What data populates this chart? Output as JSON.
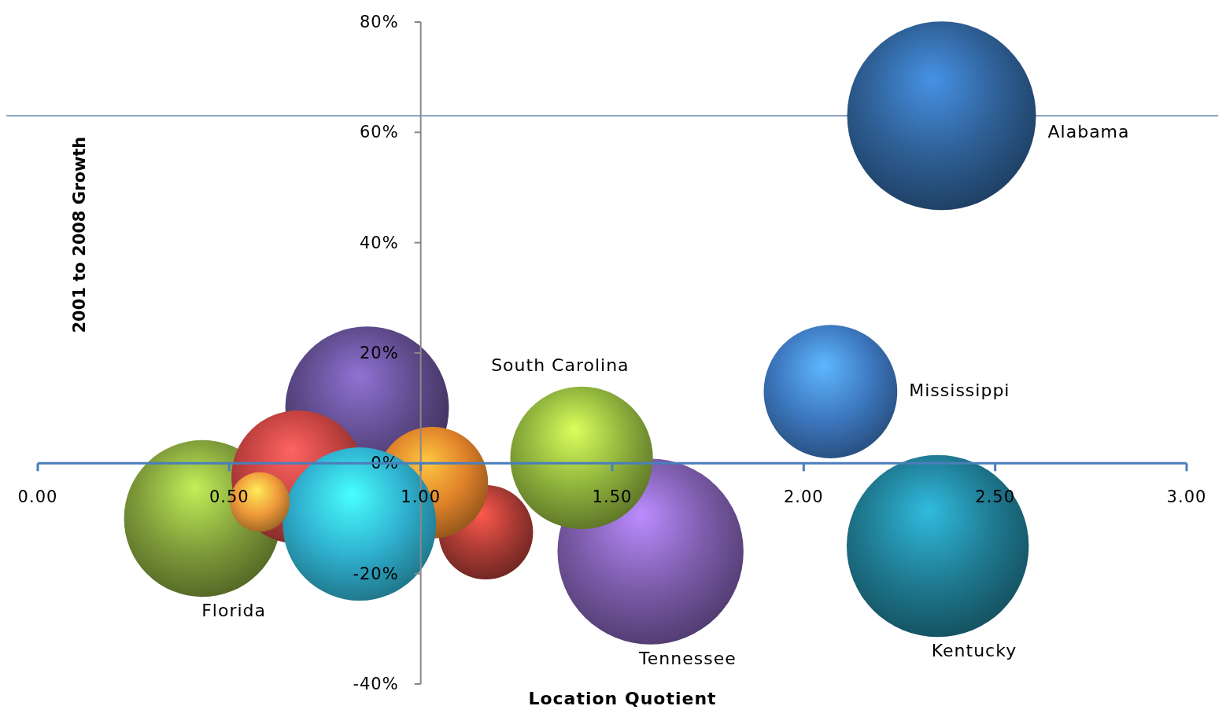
{
  "chart_data": {
    "type": "bubble",
    "xlabel": "Location Quotient",
    "ylabel": "2001 to 2008 Growth",
    "xlim": [
      0,
      3
    ],
    "xticks": [
      {
        "value": 0,
        "label": "0.00"
      },
      {
        "value": 0.5,
        "label": "0.50"
      },
      {
        "value": 1,
        "label": "1.00"
      },
      {
        "value": 1.5,
        "label": "1.50"
      },
      {
        "value": 2,
        "label": "2.00"
      },
      {
        "value": 2.5,
        "label": "2.50"
      },
      {
        "value": 3,
        "label": "3.00"
      }
    ],
    "ylim": [
      -40,
      80
    ],
    "yticks": [
      {
        "value": -40,
        "label": "-40%"
      },
      {
        "value": -20,
        "label": "-20%"
      },
      {
        "value": 0,
        "label": "0%"
      },
      {
        "value": 20,
        "label": "20%"
      },
      {
        "value": 40,
        "label": "40%"
      },
      {
        "value": 60,
        "label": "60%"
      },
      {
        "value": 80,
        "label": "80%"
      }
    ],
    "grid": false,
    "legend": false,
    "ref_lines": [
      {
        "axis": "y",
        "value": 63,
        "color": "#3b6592"
      }
    ],
    "series": [
      {
        "name": "Alabama",
        "color": "#2e5f95",
        "x": [
          2.36
        ],
        "values": [
          63
        ],
        "sizes": [
          1
        ]
      },
      {
        "name": "Mississippi",
        "color": "#3d78c0",
        "x": [
          2.07
        ],
        "values": [
          13
        ],
        "sizes": [
          0.5
        ]
      },
      {
        "name": "Kentucky",
        "color": "#1f7a91",
        "x": [
          2.35
        ],
        "values": [
          -15
        ],
        "sizes": [
          0.93
        ]
      },
      {
        "name": "Tennessee",
        "color": "#7a5ba8",
        "x": [
          1.6
        ],
        "values": [
          -16
        ],
        "sizes": [
          0.97
        ]
      },
      {
        "name": "South Carolina",
        "color": "#8eb13c",
        "x": [
          1.42
        ],
        "values": [
          1
        ],
        "sizes": [
          0.57
        ]
      },
      {
        "name": "Florida",
        "color": "#7f9c3a",
        "x": [
          0.43
        ],
        "values": [
          -10
        ],
        "sizes": [
          0.69
        ]
      },
      {
        "color": "#5e4a8a",
        "x": [
          0.86
        ],
        "values": [
          10
        ],
        "sizes": [
          0.75
        ]
      },
      {
        "color": "#c0413f",
        "x": [
          0.68
        ],
        "values": [
          -2.5
        ],
        "sizes": [
          0.5
        ]
      },
      {
        "color": "#a83a33",
        "x": [
          1.17
        ],
        "values": [
          -12.5
        ],
        "sizes": [
          0.25
        ]
      },
      {
        "color": "#e0822a",
        "x": [
          1.03
        ],
        "values": [
          -3.5
        ],
        "sizes": [
          0.35
        ]
      },
      {
        "color": "#2fb0cf",
        "x": [
          0.84
        ],
        "values": [
          -11
        ],
        "sizes": [
          0.66
        ]
      },
      {
        "color": "#f09a3a",
        "x": [
          0.58
        ],
        "values": [
          -7
        ],
        "sizes": [
          0.1
        ]
      }
    ]
  }
}
